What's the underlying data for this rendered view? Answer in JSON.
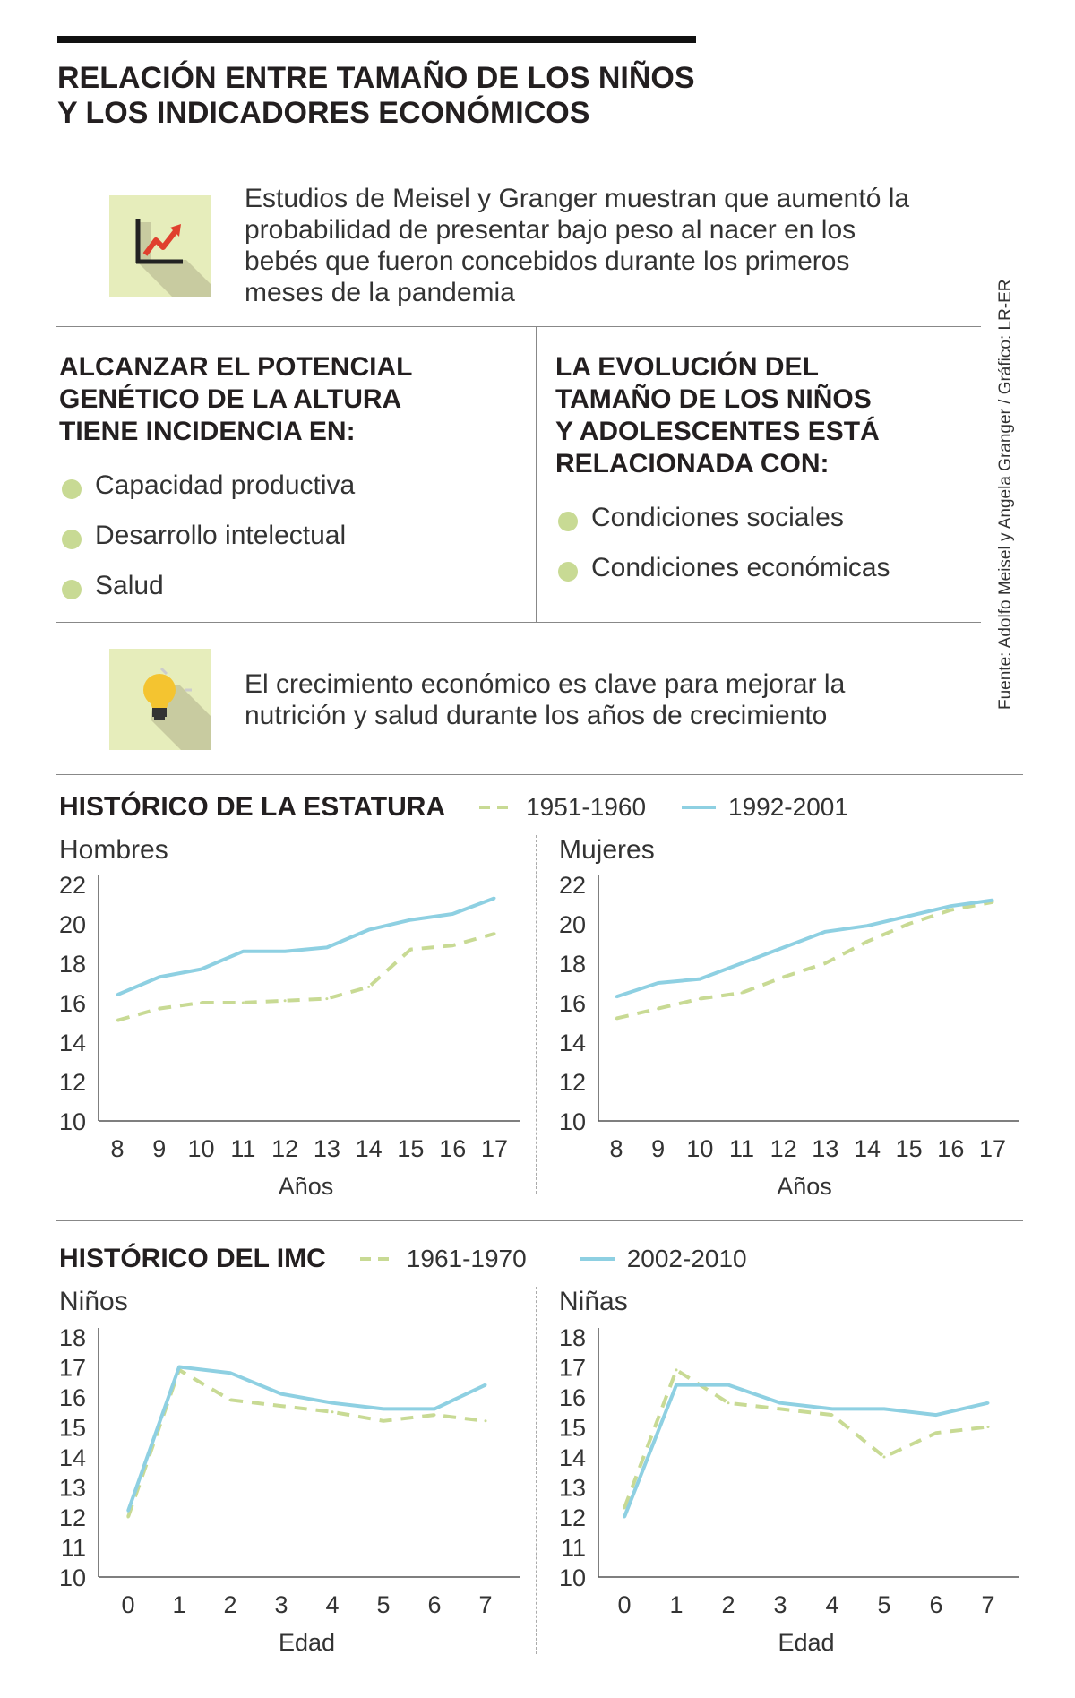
{
  "header": {
    "title_line1": "RELACIÓN ENTRE TAMAÑO DE LOS NIÑOS",
    "title_line2": "Y LOS INDICADORES ECONÓMICOS"
  },
  "intro": {
    "text": "Estudios de Meisel y Granger muestran que aumentó la probabilidad de presentar bajo peso al nacer en los bebés que fueron concebidos durante los primeros meses de la pandemia",
    "icon": "chart-growth-icon"
  },
  "left_section": {
    "title_line1": "ALCANZAR EL POTENCIAL",
    "title_line2": "GENÉTICO DE LA ALTURA",
    "title_line3": "TIENE INCIDENCIA EN:",
    "items": [
      "Capacidad productiva",
      "Desarrollo intelectual",
      "Salud"
    ]
  },
  "right_section": {
    "title_line1": "LA EVOLUCIÓN DEL",
    "title_line2": "TAMAÑO DE LOS NIÑOS",
    "title_line3": "Y ADOLESCENTES ESTÁ",
    "title_line4": "RELACIONADA CON:",
    "items": [
      "Condiciones sociales",
      "Condiciones económicas"
    ]
  },
  "tip": {
    "text": "El crecimiento económico es clave para mejorar la nutrición y salud durante los años de crecimiento",
    "icon": "lightbulb-icon"
  },
  "credit": "Fuente: Adolfo Meisel y Angela Granger / Gráfico: LR-ER",
  "colors": {
    "old_series": "#c8da94",
    "new_series": "#8ed0e2",
    "icon_bg": "#e6edbb",
    "icon_shadow": "#c8cba0",
    "accent_red": "#e0402e",
    "bulb": "#f4c430"
  },
  "estatura": {
    "title": "HISTÓRICO DE LA ESTATURA",
    "legend_old": "1951-1960",
    "legend_new": "1992-2001"
  },
  "imc": {
    "title": "HISTÓRICO DEL IMC",
    "legend_old": "1961-1970",
    "legend_new": "2002-2010"
  },
  "chart_data": [
    {
      "id": "estatura-hombres",
      "type": "line",
      "title": "Hombres",
      "xlabel": "Años",
      "ylabel": "",
      "x": [
        8,
        9,
        10,
        11,
        12,
        13,
        14,
        15,
        16,
        17
      ],
      "ylim": [
        10,
        22
      ],
      "yticks": [
        10,
        12,
        14,
        16,
        18,
        20,
        22
      ],
      "series": [
        {
          "name": "1951-1960",
          "style": "dashed",
          "values": [
            15.1,
            15.7,
            16.0,
            16.0,
            16.1,
            16.2,
            16.8,
            18.7,
            18.9,
            19.5
          ]
        },
        {
          "name": "1992-2001",
          "style": "solid",
          "values": [
            16.4,
            17.3,
            17.7,
            18.6,
            18.6,
            18.8,
            19.7,
            20.2,
            20.5,
            21.3
          ]
        }
      ]
    },
    {
      "id": "estatura-mujeres",
      "type": "line",
      "title": "Mujeres",
      "xlabel": "Años",
      "ylabel": "",
      "x": [
        8,
        9,
        10,
        11,
        12,
        13,
        14,
        15,
        16,
        17
      ],
      "ylim": [
        10,
        22
      ],
      "yticks": [
        10,
        12,
        14,
        16,
        18,
        20,
        22
      ],
      "series": [
        {
          "name": "1951-1960",
          "style": "dashed",
          "values": [
            15.2,
            15.7,
            16.2,
            16.5,
            17.3,
            18.0,
            19.1,
            20.0,
            20.7,
            21.1
          ]
        },
        {
          "name": "1992-2001",
          "style": "solid",
          "values": [
            16.3,
            17.0,
            17.2,
            18.0,
            18.8,
            19.6,
            19.9,
            20.4,
            20.9,
            21.2
          ]
        }
      ]
    },
    {
      "id": "imc-ninos",
      "type": "line",
      "title": "Niños",
      "xlabel": "Edad",
      "ylabel": "",
      "x": [
        0,
        1,
        2,
        3,
        4,
        5,
        6,
        7
      ],
      "ylim": [
        10,
        18
      ],
      "yticks": [
        10,
        11,
        12,
        13,
        14,
        15,
        16,
        17,
        18
      ],
      "series": [
        {
          "name": "1961-1970",
          "style": "dashed",
          "values": [
            12.0,
            16.9,
            15.9,
            15.7,
            15.5,
            15.2,
            15.4,
            15.2
          ]
        },
        {
          "name": "2002-2010",
          "style": "solid",
          "values": [
            12.2,
            17.0,
            16.8,
            16.1,
            15.8,
            15.6,
            15.6,
            16.4
          ]
        }
      ]
    },
    {
      "id": "imc-ninas",
      "type": "line",
      "title": "Niñas",
      "xlabel": "Edad",
      "ylabel": "",
      "x": [
        0,
        1,
        2,
        3,
        4,
        5,
        6,
        7
      ],
      "ylim": [
        10,
        18
      ],
      "yticks": [
        10,
        11,
        12,
        13,
        14,
        15,
        16,
        17,
        18
      ],
      "series": [
        {
          "name": "1961-1970",
          "style": "dashed",
          "values": [
            12.3,
            16.9,
            15.8,
            15.6,
            15.4,
            14.0,
            14.8,
            15.0
          ]
        },
        {
          "name": "2002-2010",
          "style": "solid",
          "values": [
            12.0,
            16.4,
            16.4,
            15.8,
            15.6,
            15.6,
            15.4,
            15.8
          ]
        }
      ]
    }
  ]
}
